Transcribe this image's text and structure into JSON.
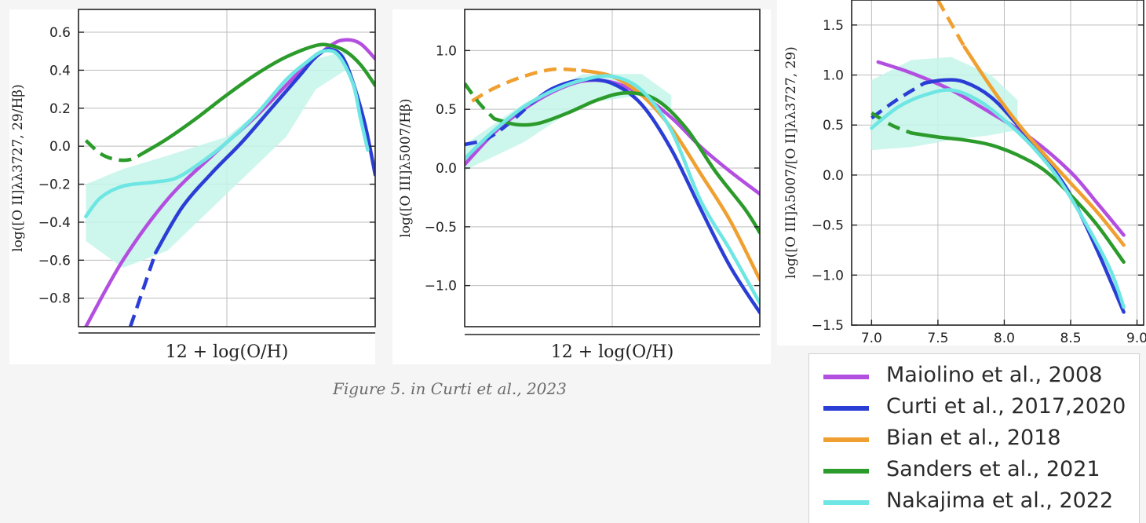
{
  "colors": {
    "maiolino": "#b34fe0",
    "curti": "#2a3ed6",
    "bian": "#f0a030",
    "sanders": "#2b9b2b",
    "nakajima": "#6ee6e3",
    "band": "#c4f5ea"
  },
  "caption": "Figure 5. in Curti et al., 2023",
  "legend": [
    {
      "label": "Maiolino et al., 2008",
      "key": "maiolino"
    },
    {
      "label": "Curti et al., 2017,2020",
      "key": "curti"
    },
    {
      "label": "Bian et al., 2018",
      "key": "bian"
    },
    {
      "label": "Sanders et al., 2021",
      "key": "sanders"
    },
    {
      "label": "Nakajima et al., 2022",
      "key": "nakajima"
    }
  ],
  "chart_data": [
    {
      "type": "line",
      "xlabel": "12 + log(O/H)",
      "ylabel": "log([O II]λλ3727, 29/Hβ)",
      "xlim": [
        7.0,
        9.0
      ],
      "ylim": [
        -0.95,
        0.72
      ],
      "x_ticks": [],
      "y_ticks": [
        {
          "v": 0.6,
          "label": "0.6"
        },
        {
          "v": 0.4,
          "label": "0.4"
        },
        {
          "v": 0.2,
          "label": "0.2"
        },
        {
          "v": 0.0,
          "label": "0.0"
        },
        {
          "v": -0.2,
          "label": "−0.2"
        },
        {
          "v": -0.4,
          "label": "−0.4"
        },
        {
          "v": -0.6,
          "label": "−0.6"
        },
        {
          "v": -0.8,
          "label": "−0.8"
        }
      ],
      "grid": true,
      "series": [
        {
          "key": "maiolino",
          "x": [
            7.05,
            7.3,
            7.6,
            7.9,
            8.2,
            8.5,
            8.7,
            8.8,
            8.9,
            9.0
          ],
          "y": [
            -0.95,
            -0.6,
            -0.28,
            -0.05,
            0.16,
            0.4,
            0.53,
            0.56,
            0.54,
            0.46
          ]
        },
        {
          "key": "curti",
          "dashed_until": 7.52,
          "x": [
            7.35,
            7.45,
            7.52,
            7.7,
            7.9,
            8.1,
            8.3,
            8.5,
            8.6,
            8.7,
            8.8,
            8.92,
            9.0
          ],
          "y": [
            -0.95,
            -0.72,
            -0.56,
            -0.32,
            -0.14,
            0.02,
            0.2,
            0.38,
            0.47,
            0.51,
            0.44,
            0.15,
            -0.15
          ]
        },
        {
          "key": "sanders",
          "dashed_until": 7.4,
          "x": [
            7.05,
            7.15,
            7.25,
            7.35,
            7.45,
            7.6,
            7.8,
            8.0,
            8.2,
            8.4,
            8.6,
            8.7,
            8.8,
            8.9,
            9.0
          ],
          "y": [
            0.03,
            -0.04,
            -0.07,
            -0.07,
            -0.03,
            0.04,
            0.15,
            0.27,
            0.38,
            0.47,
            0.53,
            0.53,
            0.5,
            0.43,
            0.32
          ]
        },
        {
          "key": "nakajima",
          "x": [
            7.05,
            7.15,
            7.3,
            7.5,
            7.65,
            7.8,
            8.0,
            8.2,
            8.4,
            8.55,
            8.65,
            8.75,
            8.85,
            8.9,
            8.95
          ],
          "y": [
            -0.37,
            -0.27,
            -0.21,
            -0.19,
            -0.17,
            -0.1,
            0.02,
            0.17,
            0.35,
            0.45,
            0.5,
            0.48,
            0.33,
            0.15,
            -0.02
          ]
        }
      ],
      "band": {
        "x": [
          7.05,
          7.3,
          7.6,
          8.0,
          8.4,
          8.6,
          8.8
        ],
        "upper": [
          -0.2,
          -0.12,
          -0.05,
          0.05,
          0.3,
          0.46,
          0.5
        ],
        "lower": [
          -0.5,
          -0.64,
          -0.55,
          -0.25,
          0.05,
          0.3,
          0.4
        ]
      }
    },
    {
      "type": "line",
      "xlabel": "12 + log(O/H)",
      "ylabel": "log([O III]λ5007/Hβ)",
      "xlim": [
        7.0,
        9.0
      ],
      "ylim": [
        -1.35,
        1.35
      ],
      "x_ticks": [],
      "y_ticks": [
        {
          "v": 1.0,
          "label": "1.0"
        },
        {
          "v": 0.5,
          "label": "0.5"
        },
        {
          "v": 0.0,
          "label": "0.0"
        },
        {
          "v": -0.5,
          "label": "−0.5"
        },
        {
          "v": -1.0,
          "label": "−1.0"
        }
      ],
      "grid": true,
      "series": [
        {
          "key": "maiolino",
          "x": [
            7.0,
            7.2,
            7.4,
            7.6,
            7.8,
            8.0,
            8.2,
            8.4,
            8.6,
            8.8,
            9.0
          ],
          "y": [
            0.03,
            0.3,
            0.5,
            0.65,
            0.74,
            0.73,
            0.62,
            0.43,
            0.18,
            -0.03,
            -0.22
          ]
        },
        {
          "key": "curti",
          "dashed_until": 7.45,
          "x": [
            7.0,
            7.15,
            7.3,
            7.45,
            7.6,
            7.8,
            8.0,
            8.2,
            8.4,
            8.6,
            8.8,
            9.0
          ],
          "y": [
            0.2,
            0.25,
            0.38,
            0.55,
            0.68,
            0.75,
            0.72,
            0.54,
            0.16,
            -0.35,
            -0.84,
            -1.23
          ]
        },
        {
          "key": "bian",
          "dashed_until": 7.8,
          "x": [
            7.05,
            7.2,
            7.4,
            7.6,
            7.8,
            8.0,
            8.2,
            8.4,
            8.6,
            8.8,
            9.0
          ],
          "y": [
            0.57,
            0.68,
            0.78,
            0.84,
            0.83,
            0.78,
            0.62,
            0.34,
            -0.05,
            -0.45,
            -0.95
          ]
        },
        {
          "key": "sanders",
          "dashed_until": 7.2,
          "x": [
            7.0,
            7.1,
            7.2,
            7.35,
            7.5,
            7.7,
            7.9,
            8.1,
            8.3,
            8.5,
            8.7,
            8.9,
            9.0
          ],
          "y": [
            0.72,
            0.55,
            0.42,
            0.37,
            0.38,
            0.47,
            0.58,
            0.64,
            0.58,
            0.34,
            -0.03,
            -0.35,
            -0.55
          ]
        },
        {
          "key": "nakajima",
          "x": [
            7.0,
            7.2,
            7.4,
            7.6,
            7.8,
            8.0,
            8.2,
            8.4,
            8.6,
            8.8,
            9.0
          ],
          "y": [
            0.08,
            0.32,
            0.52,
            0.66,
            0.75,
            0.78,
            0.66,
            0.32,
            -0.28,
            -0.7,
            -1.15
          ]
        }
      ],
      "band": {
        "x": [
          7.0,
          7.4,
          7.8,
          8.2,
          8.4
        ],
        "upper": [
          0.2,
          0.55,
          0.8,
          0.8,
          0.62
        ],
        "lower": [
          -0.02,
          0.22,
          0.55,
          0.62,
          0.5
        ]
      }
    },
    {
      "type": "line",
      "xlabel": "",
      "ylabel": "log([O III]λ5007/[O II]λλ3727, 29)",
      "xlim": [
        6.85,
        9.05
      ],
      "ylim": [
        -1.5,
        1.75
      ],
      "x_ticks": [
        {
          "v": 7.0,
          "label": "7.0"
        },
        {
          "v": 7.5,
          "label": "7.5"
        },
        {
          "v": 8.0,
          "label": "8.0"
        },
        {
          "v": 8.5,
          "label": "8.5"
        },
        {
          "v": 9.0,
          "label": "9.0"
        }
      ],
      "y_ticks": [
        {
          "v": 1.5,
          "label": "1.5"
        },
        {
          "v": 1.0,
          "label": "1.0"
        },
        {
          "v": 0.5,
          "label": "0.5"
        },
        {
          "v": 0.0,
          "label": "0.0"
        },
        {
          "v": -0.5,
          "label": "−0.5"
        },
        {
          "v": -1.0,
          "label": "−1.0"
        },
        {
          "v": -1.5,
          "label": "−1.5"
        }
      ],
      "grid": true,
      "series": [
        {
          "key": "maiolino",
          "x": [
            7.05,
            7.3,
            7.6,
            7.9,
            8.2,
            8.5,
            8.7,
            8.9
          ],
          "y": [
            1.13,
            1.02,
            0.85,
            0.62,
            0.37,
            0.03,
            -0.28,
            -0.6
          ]
        },
        {
          "key": "curti",
          "dashed_until": 7.4,
          "x": [
            7.0,
            7.2,
            7.4,
            7.55,
            7.7,
            7.9,
            8.1,
            8.3,
            8.5,
            8.7,
            8.9
          ],
          "y": [
            0.57,
            0.76,
            0.92,
            0.95,
            0.93,
            0.78,
            0.5,
            0.18,
            -0.2,
            -0.75,
            -1.37
          ]
        },
        {
          "key": "bian",
          "dashed_until": 7.7,
          "x": [
            7.5,
            7.7,
            7.9,
            8.1,
            8.3,
            8.5,
            8.7,
            8.9
          ],
          "y": [
            1.75,
            1.28,
            0.88,
            0.52,
            0.21,
            -0.08,
            -0.37,
            -0.7
          ]
        },
        {
          "key": "sanders",
          "dashed_until": 7.3,
          "x": [
            7.0,
            7.15,
            7.3,
            7.5,
            7.7,
            7.9,
            8.1,
            8.3,
            8.5,
            8.7,
            8.9
          ],
          "y": [
            0.62,
            0.5,
            0.42,
            0.38,
            0.35,
            0.3,
            0.2,
            0.05,
            -0.2,
            -0.5,
            -0.87
          ]
        },
        {
          "key": "nakajima",
          "x": [
            7.0,
            7.2,
            7.4,
            7.6,
            7.8,
            8.0,
            8.2,
            8.4,
            8.6,
            8.8,
            8.9
          ],
          "y": [
            0.47,
            0.68,
            0.8,
            0.85,
            0.75,
            0.55,
            0.3,
            -0.02,
            -0.45,
            -0.95,
            -1.32
          ]
        }
      ],
      "band": {
        "x": [
          7.0,
          7.3,
          7.6,
          7.9,
          8.1
        ],
        "upper": [
          0.95,
          1.15,
          1.18,
          1.0,
          0.75
        ],
        "lower": [
          0.25,
          0.28,
          0.35,
          0.4,
          0.45
        ]
      }
    }
  ]
}
